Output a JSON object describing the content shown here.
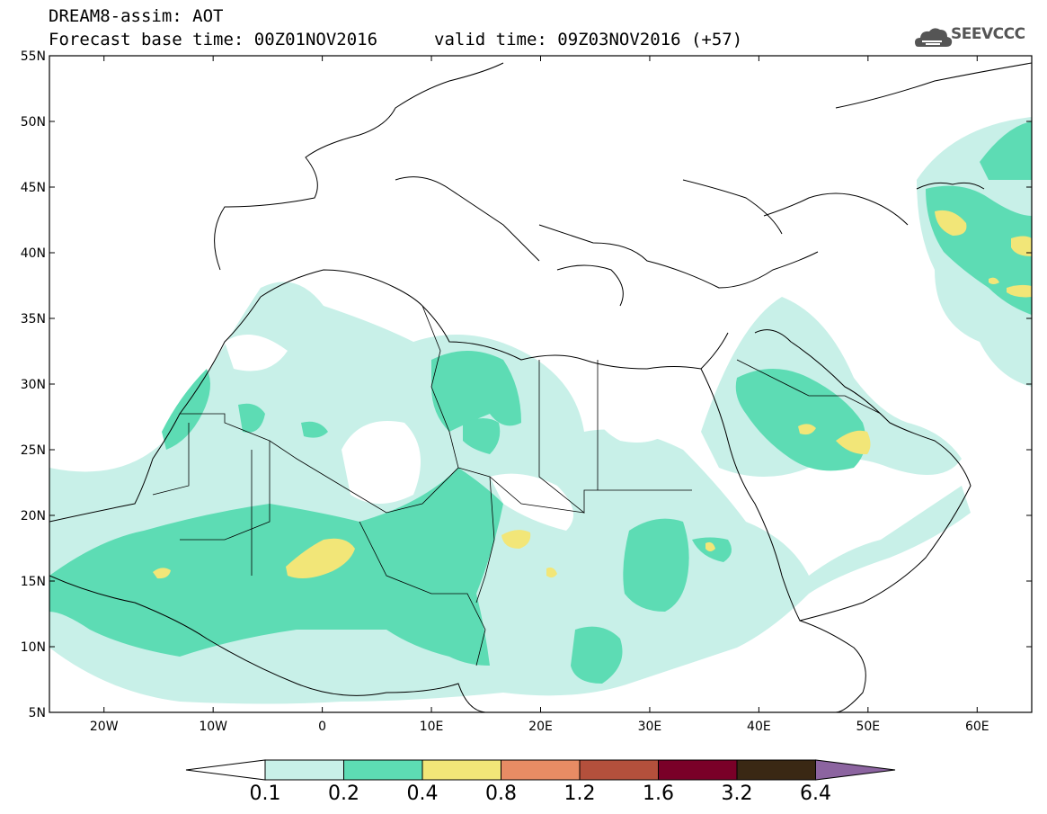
{
  "header": {
    "line1": "DREAM8-assim: AOT",
    "line2_left": "Forecast base time: 00Z01NOV2016",
    "line2_right": "valid time: 09Z03NOV2016 (+57)",
    "logo_text": "SEEVCCC"
  },
  "map": {
    "extent": {
      "lon": [
        -25,
        65
      ],
      "lat": [
        5,
        55
      ]
    },
    "lat_ticks": [
      "55N",
      "50N",
      "45N",
      "40N",
      "35N",
      "30N",
      "25N",
      "20N",
      "15N",
      "10N",
      "5N"
    ],
    "lon_ticks": [
      "20W",
      "10W",
      "0",
      "10E",
      "20E",
      "30E",
      "40E",
      "50E",
      "60E"
    ]
  },
  "colorbar": {
    "labels": [
      "0.1",
      "0.2",
      "0.4",
      "0.8",
      "1.2",
      "1.6",
      "3.2",
      "6.4"
    ],
    "colors": [
      "#c8f0e8",
      "#5ddcb4",
      "#f2e678",
      "#e88c64",
      "#b4503c",
      "#7a0028",
      "#3a2814",
      "#8c64a0"
    ],
    "under_color": "#ffffff"
  }
}
